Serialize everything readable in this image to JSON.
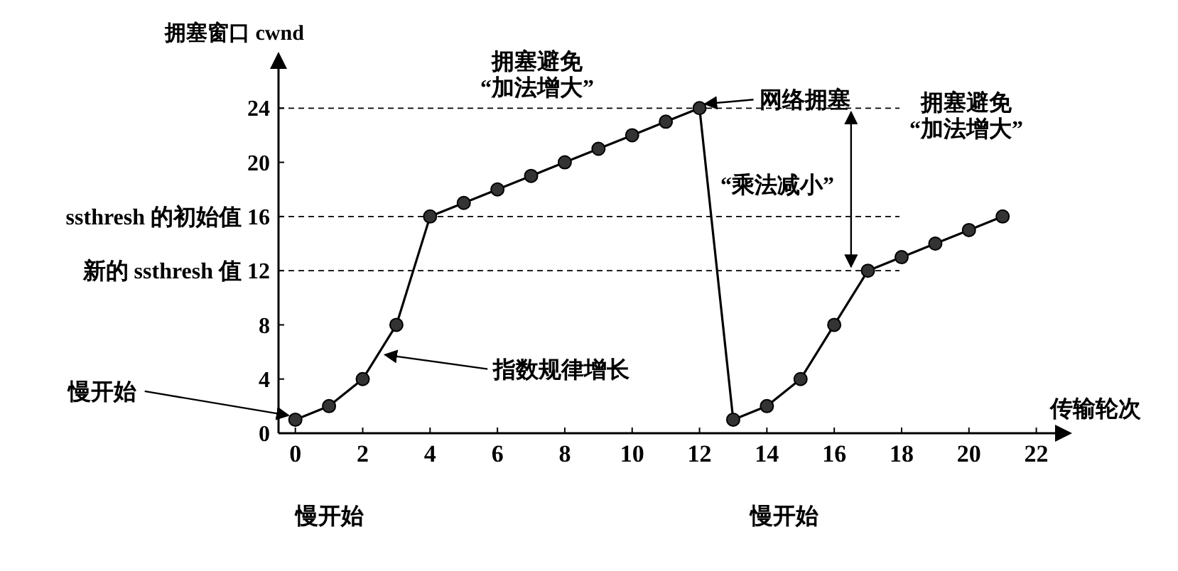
{
  "chart_data": {
    "type": "line",
    "xlabel": "传输轮次",
    "ylabel": "拥塞窗口 cwnd",
    "x": [
      0,
      1,
      2,
      3,
      4,
      5,
      6,
      7,
      8,
      9,
      10,
      11,
      12,
      13,
      14,
      15,
      16,
      17,
      18,
      19,
      20,
      21
    ],
    "series": [
      {
        "color": "#000000",
        "values": [
          1,
          2,
          4,
          8,
          16,
          17,
          18,
          19,
          20,
          21,
          22,
          23,
          24,
          1,
          2,
          4,
          8,
          12,
          13,
          14,
          15,
          16
        ]
      }
    ],
    "xlim": [
      -0.5,
      23
    ],
    "xticks": [
      0,
      2,
      4,
      6,
      8,
      10,
      12,
      14,
      16,
      18,
      20,
      22
    ],
    "ylim": [
      0,
      28
    ],
    "yticks": [
      0,
      4,
      8,
      {
        "value": 12,
        "label": "新的 ssthresh 值 12"
      },
      {
        "value": 16,
        "label": "ssthresh 的初始值 16"
      },
      20,
      24
    ],
    "ref_lines": [
      {
        "axis": "y",
        "value": 24,
        "line_style": "dashed"
      },
      {
        "axis": "y",
        "value": 16,
        "line_style": "dashed"
      },
      {
        "axis": "y",
        "value": 12,
        "line_style": "dashed"
      }
    ],
    "annotations": [
      "拥塞避免\n“加法增大”",
      {
        "text": "网络拥塞",
        "x": 12,
        "y": 24
      },
      "拥塞避免\n“加法增大”",
      "“乘法减小”",
      {
        "text": "指数规律增长",
        "x": 2.5,
        "y": 6
      },
      {
        "text": "慢开始",
        "x": 0,
        "y": 1
      },
      "慢开始",
      "慢开始"
    ],
    "marker": "circle",
    "line_style": "solid",
    "grid": false
  }
}
